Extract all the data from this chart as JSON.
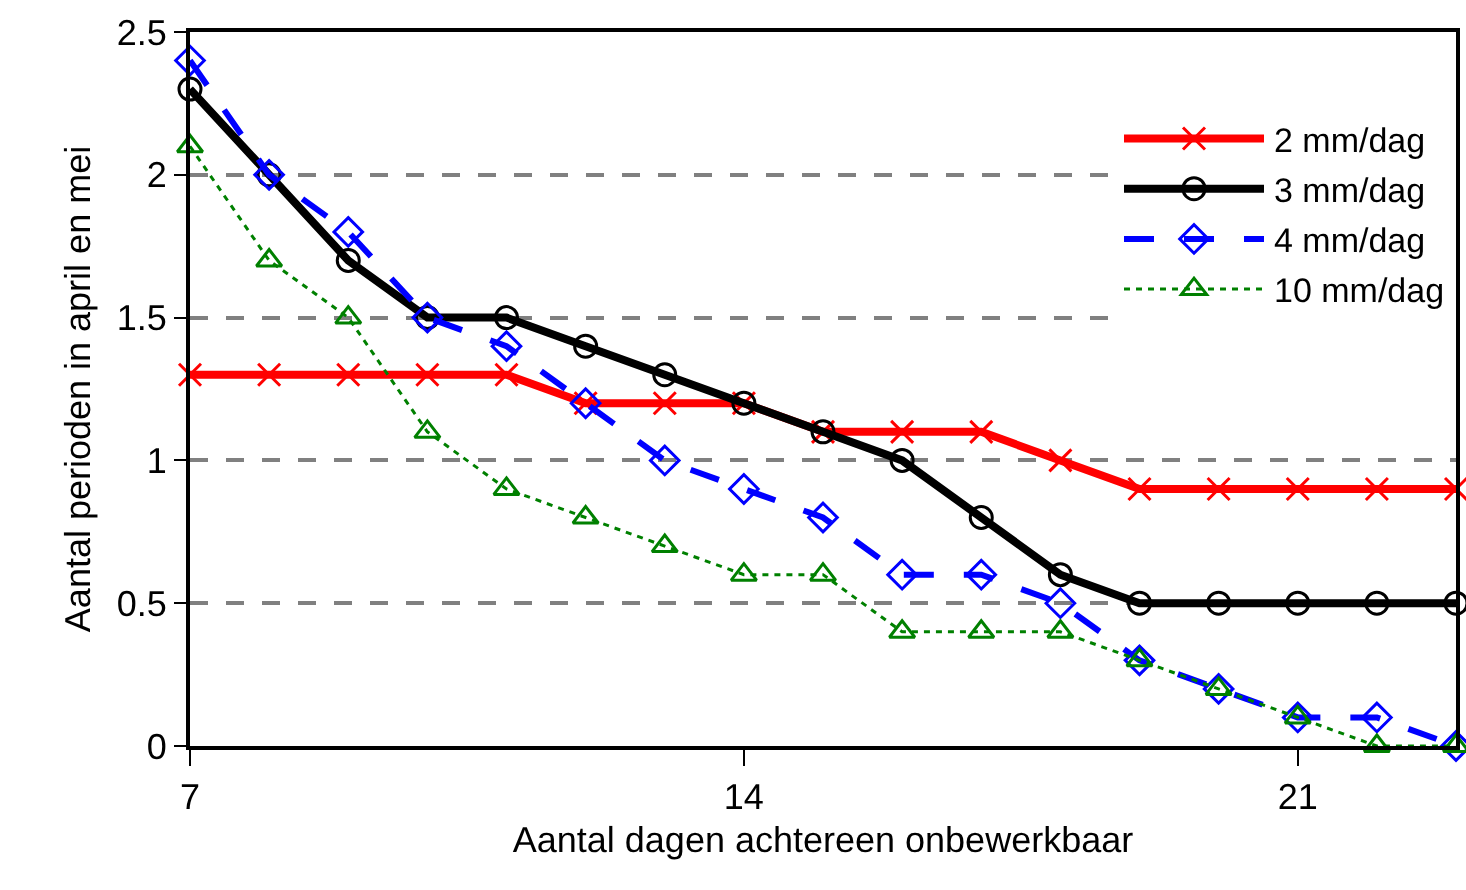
{
  "chart_data": {
    "type": "line",
    "xlabel": "Aantal dagen achtereen onbewerkbaar",
    "ylabel": "Aantal perioden in april en mei",
    "x": [
      7,
      8,
      9,
      10,
      11,
      12,
      13,
      14,
      15,
      16,
      17,
      18,
      19,
      20,
      21,
      22,
      23
    ],
    "series": [
      {
        "name": "2 mm/dag",
        "color": "#ff0000",
        "marker": "cross",
        "line_style": "solid",
        "values": [
          1.3,
          1.3,
          1.3,
          1.3,
          1.3,
          1.2,
          1.2,
          1.2,
          1.1,
          1.1,
          1.1,
          1.0,
          0.9,
          0.9,
          0.9,
          0.9,
          0.9
        ]
      },
      {
        "name": "3 mm/dag",
        "color": "#000000",
        "marker": "circle",
        "line_style": "solid",
        "values": [
          2.3,
          2.0,
          1.7,
          1.5,
          1.5,
          1.4,
          1.3,
          1.2,
          1.1,
          1.0,
          0.8,
          0.6,
          0.5,
          0.5,
          0.5,
          0.5,
          0.5
        ]
      },
      {
        "name": "4 mm/dag",
        "color": "#0000ff",
        "marker": "diamond",
        "line_style": "dashed",
        "values": [
          2.4,
          2.0,
          1.8,
          1.5,
          1.4,
          1.2,
          1.0,
          0.9,
          0.8,
          0.6,
          0.6,
          0.5,
          0.3,
          0.2,
          0.1,
          0.1,
          0.0
        ]
      },
      {
        "name": "10 mm/dag",
        "color": "#008000",
        "marker": "triangle",
        "line_style": "dotted",
        "values": [
          2.1,
          1.7,
          1.5,
          1.1,
          0.9,
          0.8,
          0.7,
          0.6,
          0.6,
          0.4,
          0.4,
          0.4,
          0.3,
          0.2,
          0.1,
          0.0,
          0.0
        ]
      }
    ],
    "xlim": [
      7,
      23
    ],
    "xticks": [
      7,
      14,
      21
    ],
    "ylim": [
      0,
      2.5
    ],
    "yticks": [
      0,
      0.5,
      1,
      1.5,
      2,
      2.5
    ],
    "grid": "y",
    "legend": "top right"
  }
}
